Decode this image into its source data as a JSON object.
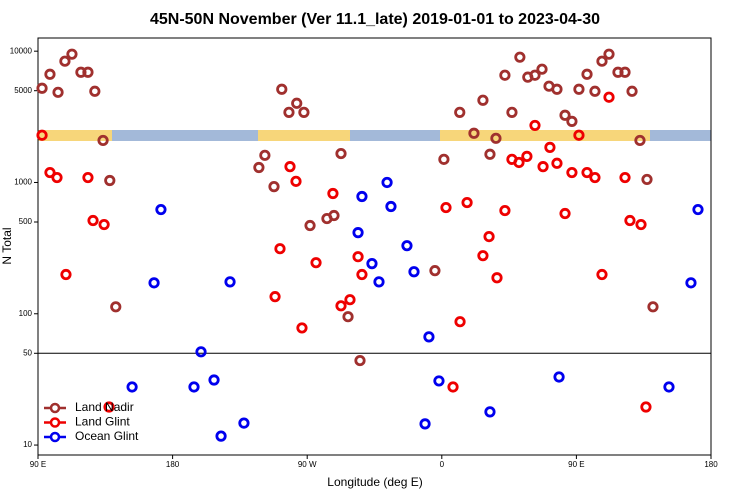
{
  "chart_data": {
    "type": "scatter",
    "title": "45N-50N November (Ver 11.1_late)   2019-01-01 to 2023-04-30",
    "x_label": "Longitude (deg E)",
    "y_label": "N Total",
    "log_y": true,
    "xlim": [
      90,
      540
    ],
    "ylim": [
      8.4,
      12600
    ],
    "xticks": [
      {
        "value": 90,
        "label": "90 E"
      },
      {
        "value": 180,
        "label": "180"
      },
      {
        "value": 270,
        "label": "90 W"
      },
      {
        "value": 360,
        "label": "0"
      },
      {
        "value": 450,
        "label": "90 E"
      },
      {
        "value": 540,
        "label": "180"
      }
    ],
    "yticks": [
      10,
      50,
      100,
      500,
      1000,
      5000,
      10000
    ],
    "hline": 50,
    "legend": "bottom-left",
    "series": [
      {
        "name": "Land Nadir",
        "color": "#a0302e",
        "x": [
          92.7,
          98,
          103.4,
          108,
          112.7,
          118.7,
          123.4,
          128,
          133.5,
          138,
          142,
          237.7,
          241.7,
          247.8,
          253,
          257.8,
          263,
          267.8,
          271.9,
          283.2,
          287.9,
          292.6,
          297.3,
          305.3,
          355.4,
          361.4,
          372,
          381.5,
          387.5,
          392.2,
          396.2,
          402.2,
          406.9,
          412.2,
          417.5,
          422.3,
          427,
          431.7,
          437,
          442.4,
          447,
          451.7,
          457.1,
          462.4,
          467.1,
          471.8,
          477.8,
          482.5,
          487.2,
          492.5,
          497.2,
          501.2
        ],
        "values": [
          5220,
          6670,
          4860,
          8390,
          9490,
          6910,
          6910,
          4950,
          2090,
          1035,
          113,
          1300,
          1610,
          930,
          5130,
          3420,
          4010,
          3420,
          470,
          531,
          560,
          1660,
          95,
          44,
          213,
          1500,
          3420,
          2370,
          4230,
          1640,
          2170,
          6560,
          3420,
          9000,
          6340,
          6560,
          7290,
          5410,
          5130,
          3250,
          2920,
          5130,
          6670,
          4950,
          8390,
          9490,
          6910,
          6910,
          4950,
          2090,
          1055,
          113
        ]
      },
      {
        "name": "Land Glint",
        "color": "#ee0000",
        "x": [
          92.7,
          98,
          102.7,
          108.7,
          123.4,
          126.8,
          134.2,
          137.5,
          258.5,
          262.5,
          248.5,
          251.8,
          266.5,
          275.9,
          287.2,
          292.6,
          298.6,
          304,
          306.6,
          362.8,
          367.5,
          372.2,
          376.9,
          387.5,
          391.6,
          396.9,
          402.2,
          406.9,
          411.6,
          416.9,
          422.3,
          427.7,
          432.3,
          437,
          442.4,
          447,
          451.7,
          457.1,
          462.4,
          467.1,
          471.8,
          482.5,
          485.8,
          493.2,
          496.5
        ],
        "values": [
          2290,
          1190,
          1090,
          199,
          1090,
          513,
          478,
          19.5,
          1320,
          1020,
          135,
          313,
          78,
          245,
          824,
          115,
          128,
          272,
          199,
          644,
          27.7,
          87,
          703,
          277,
          387,
          188,
          611,
          1500,
          1420,
          1580,
          2720,
          1320,
          1850,
          1400,
          580,
          1190,
          2290,
          1190,
          1090,
          199,
          4460,
          1090,
          513,
          478,
          19.5
        ]
      },
      {
        "name": "Ocean Glint",
        "color": "#0000ee",
        "x": [
          152.9,
          167.6,
          172.2,
          194.3,
          199,
          207.7,
          212.4,
          218.4,
          227.7,
          304,
          306.6,
          313.3,
          318,
          323.4,
          326,
          336.7,
          341.4,
          348.8,
          351.4,
          358.1,
          392.2,
          438.4,
          511.9,
          526.6,
          531.3
        ],
        "values": [
          27.7,
          172,
          622,
          27.7,
          51.3,
          31.3,
          11.7,
          175,
          14.7,
          415,
          782,
          241,
          175,
          1000,
          656,
          330,
          209,
          14.5,
          66.7,
          30.8,
          17.9,
          33,
          27.7,
          172,
          622
        ]
      }
    ]
  }
}
